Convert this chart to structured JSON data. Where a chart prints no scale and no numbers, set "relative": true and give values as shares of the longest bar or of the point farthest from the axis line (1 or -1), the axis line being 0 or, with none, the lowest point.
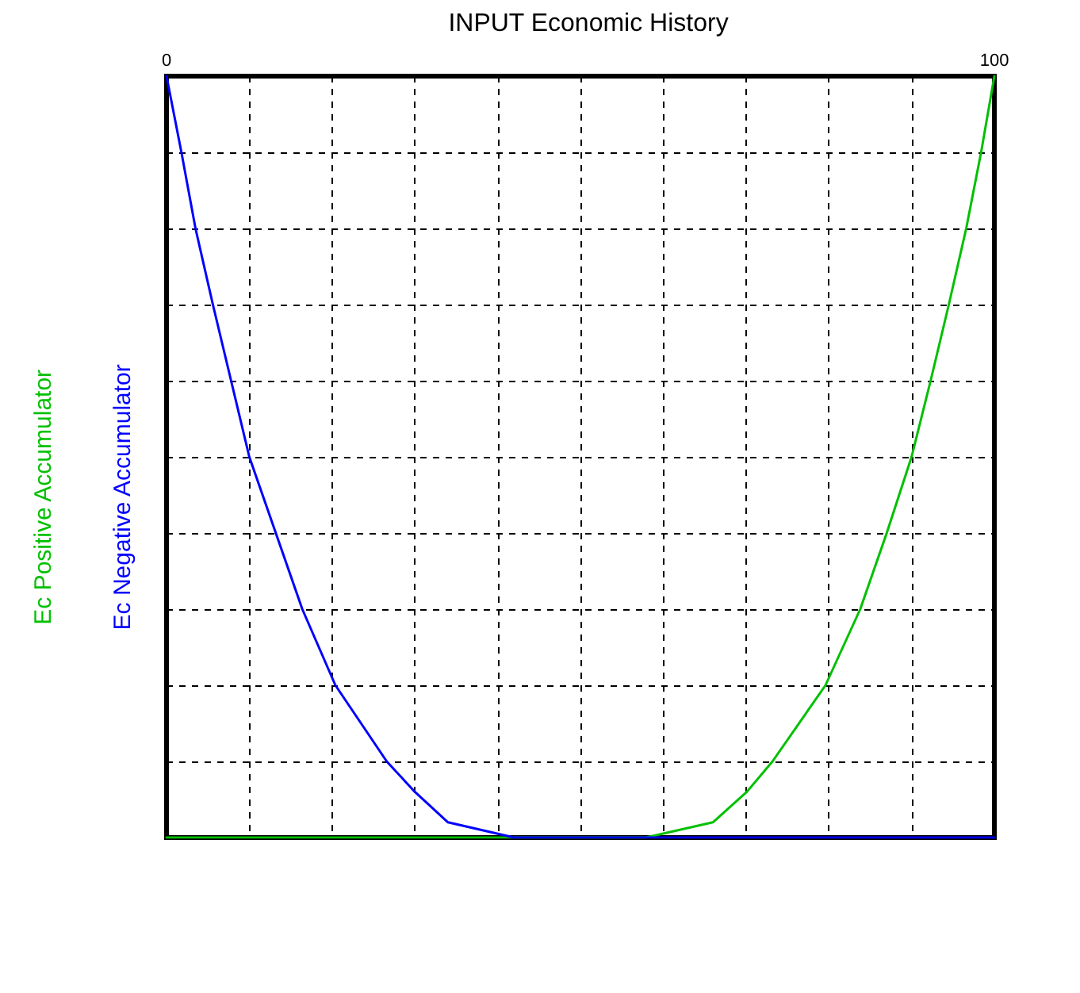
{
  "chart_data": {
    "type": "line",
    "title": "INPUT Economic History",
    "relative": true,
    "grid": true,
    "line_style": "solid",
    "marker": "none",
    "xlim": [
      0,
      100
    ],
    "xticks": [
      0,
      {
        "value": 10,
        "label": null
      },
      {
        "value": 20,
        "label": null
      },
      {
        "value": 30,
        "label": null
      },
      {
        "value": 40,
        "label": null
      },
      {
        "value": 50,
        "label": null
      },
      {
        "value": 60,
        "label": null
      },
      {
        "value": 70,
        "label": null
      },
      {
        "value": 80,
        "label": null
      },
      {
        "value": 90,
        "label": null
      },
      100
    ],
    "series": [
      {
        "name": "Ec Positive Accumulator",
        "color": "#00c000",
        "x": [
          0,
          57.9,
          66,
          70.1,
          73.2,
          79.6,
          83.8,
          87.0,
          90.0,
          92.3,
          94.5,
          96.6,
          98.4,
          100
        ],
        "values": [
          0,
          0,
          0.02,
          0.06,
          0.1,
          0.2,
          0.3,
          0.4,
          0.5,
          0.6,
          0.7,
          0.8,
          0.9,
          1
        ]
      },
      {
        "name": "Ec Negative Accumulator",
        "color": "#0000ff",
        "x": [
          0,
          1.8,
          3.5,
          5.6,
          7.8,
          10,
          13.2,
          16.4,
          20.4,
          26.6,
          30,
          34,
          42,
          100
        ],
        "values": [
          1,
          0.9,
          0.8,
          0.7,
          0.6,
          0.5,
          0.4,
          0.3,
          0.2,
          0.1,
          0.06,
          0.02,
          0,
          0
        ]
      }
    ]
  }
}
